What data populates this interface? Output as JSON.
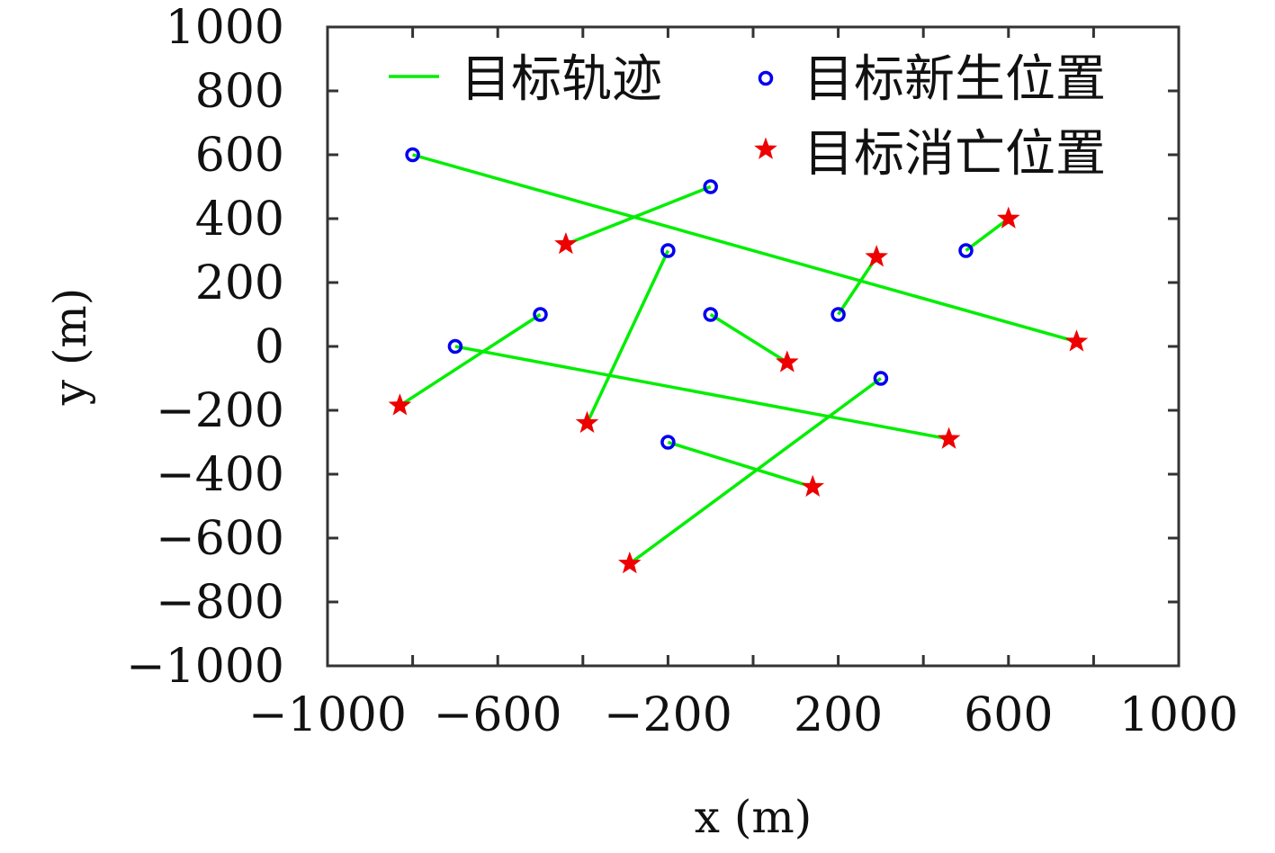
{
  "chart_data": {
    "type": "scatter",
    "xlabel": "x (m)",
    "ylabel": "y (m)",
    "xlim": [
      -1000,
      1000
    ],
    "ylim": [
      -1000,
      1000
    ],
    "xticks": [
      -1000,
      -800,
      -600,
      -400,
      -200,
      0,
      200,
      400,
      600,
      800,
      1000
    ],
    "xtick_labels": [
      "−1000",
      "",
      "−600",
      "",
      "−200",
      "",
      "200",
      "",
      "600",
      "",
      "1000"
    ],
    "yticks": [
      1000,
      800,
      600,
      400,
      200,
      0,
      -200,
      -400,
      -600,
      -800,
      -1000
    ],
    "ytick_labels": [
      "1000",
      "800",
      "600",
      "400",
      "200",
      "0",
      "−200",
      "−400",
      "−600",
      "−800",
      "−1000"
    ],
    "grid": false,
    "legend_position": "top",
    "colors": {
      "track": "#00ee00",
      "birth": "#0000ee",
      "death": "#ee0000",
      "axis": "#333333"
    },
    "series": [
      {
        "name": "目标轨迹",
        "marker": "line"
      },
      {
        "name": "目标新生位置",
        "marker": "circle"
      },
      {
        "name": "目标消亡位置",
        "marker": "star"
      }
    ],
    "tracks": [
      {
        "birth": [
          -800,
          600
        ],
        "death": [
          760,
          15
        ]
      },
      {
        "birth": [
          -100,
          500
        ],
        "death": [
          -440,
          320
        ]
      },
      {
        "birth": [
          -200,
          300
        ],
        "death": [
          -390,
          -240
        ]
      },
      {
        "birth": [
          -500,
          100
        ],
        "death": [
          -830,
          -185
        ]
      },
      {
        "birth": [
          -700,
          0
        ],
        "death": [
          460,
          -290
        ]
      },
      {
        "birth": [
          -100,
          100
        ],
        "death": [
          80,
          -50
        ]
      },
      {
        "birth": [
          200,
          100
        ],
        "death": [
          290,
          280
        ]
      },
      {
        "birth": [
          500,
          300
        ],
        "death": [
          600,
          400
        ]
      },
      {
        "birth": [
          300,
          -100
        ],
        "death": [
          -290,
          -680
        ]
      },
      {
        "birth": [
          -200,
          -300
        ],
        "death": [
          140,
          -440
        ]
      }
    ]
  }
}
